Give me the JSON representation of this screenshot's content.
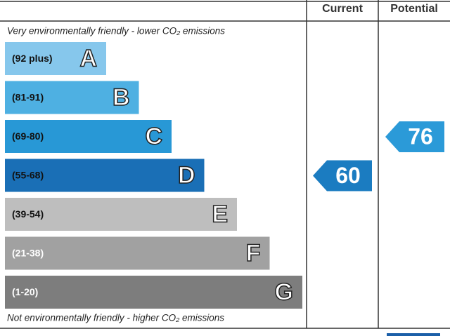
{
  "chart_data": {
    "type": "epc",
    "headers": [
      "Current",
      "Potential"
    ],
    "top_note": "Very environmentally friendly - lower CO₂ emissions",
    "bottom_note": "Not environmentally friendly - higher CO₂ emissions",
    "bands": [
      {
        "range": "(92 plus)",
        "letter": "A",
        "color": "#86c7ec"
      },
      {
        "range": "(81-91)",
        "letter": "B",
        "color": "#4eb0e2"
      },
      {
        "range": "(69-80)",
        "letter": "C",
        "color": "#2898d6"
      },
      {
        "range": "(55-68)",
        "letter": "D",
        "color": "#1a6fb6"
      },
      {
        "range": "(39-54)",
        "letter": "E",
        "color": "#bebebe"
      },
      {
        "range": "(21-38)",
        "letter": "F",
        "color": "#a1a1a1"
      },
      {
        "range": "(1-20)",
        "letter": "G",
        "color": "#7d7d7d"
      }
    ],
    "series": [
      {
        "name": "Current",
        "color": "#1b7cc1",
        "values": [
          60
        ]
      },
      {
        "name": "Potential",
        "color": "#2b9ad8",
        "values": [
          76
        ]
      }
    ]
  }
}
